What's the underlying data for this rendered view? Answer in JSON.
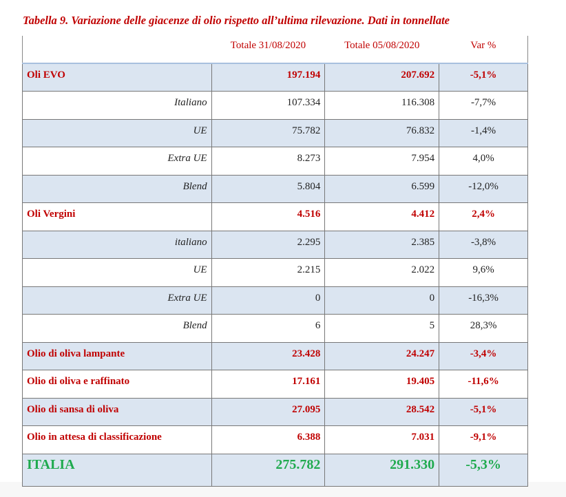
{
  "title": "Tabella 9. Variazione delle giacenze di olio rispetto all’ultima rilevazione. Dati in tonnellate",
  "headers": [
    "",
    "Totale 31/08/2020",
    "Totale 05/08/2020",
    "Var %"
  ],
  "rows": [
    {
      "label": "Oli EVO",
      "a": "197.194",
      "b": "207.692",
      "var": "-5,1%",
      "type": "main"
    },
    {
      "label": "Italiano",
      "a": "107.334",
      "b": "116.308",
      "var": "-7,7%",
      "type": "sub"
    },
    {
      "label": "UE",
      "a": "75.782",
      "b": "76.832",
      "var": "-1,4%",
      "type": "sub"
    },
    {
      "label": "Extra UE",
      "a": "8.273",
      "b": "7.954",
      "var": "4,0%",
      "type": "sub"
    },
    {
      "label": "Blend",
      "a": "5.804",
      "b": "6.599",
      "var": "-12,0%",
      "type": "sub"
    },
    {
      "label": "Oli Vergini",
      "a": "4.516",
      "b": "4.412",
      "var": "2,4%",
      "type": "main"
    },
    {
      "label": "italiano",
      "a": "2.295",
      "b": "2.385",
      "var": "-3,8%",
      "type": "sub"
    },
    {
      "label": "UE",
      "a": "2.215",
      "b": "2.022",
      "var": "9,6%",
      "type": "sub"
    },
    {
      "label": "Extra UE",
      "a": "0",
      "b": "0",
      "var": "-16,3%",
      "type": "sub"
    },
    {
      "label": "Blend",
      "a": "6",
      "b": "5",
      "var": "28,3%",
      "type": "sub"
    },
    {
      "label": "Olio di oliva lampante",
      "a": "23.428",
      "b": "24.247",
      "var": "-3,4%",
      "type": "main"
    },
    {
      "label": "Olio di oliva e raffinato",
      "a": "17.161",
      "b": "19.405",
      "var": "-11,6%",
      "type": "main"
    },
    {
      "label": "Olio di sansa di oliva",
      "a": "27.095",
      "b": "28.542",
      "var": "-5,1%",
      "type": "main"
    },
    {
      "label": "Olio in attesa di classificazione",
      "a": "6.388",
      "b": "7.031",
      "var": "-9,1%",
      "type": "main"
    },
    {
      "label": "ITALIA",
      "a": "275.782",
      "b": "291.330",
      "var": "-5,3%",
      "type": "total"
    }
  ],
  "colors": {
    "red": "#c00000",
    "green": "#1faa4e",
    "shade": "#dbe5f1"
  }
}
